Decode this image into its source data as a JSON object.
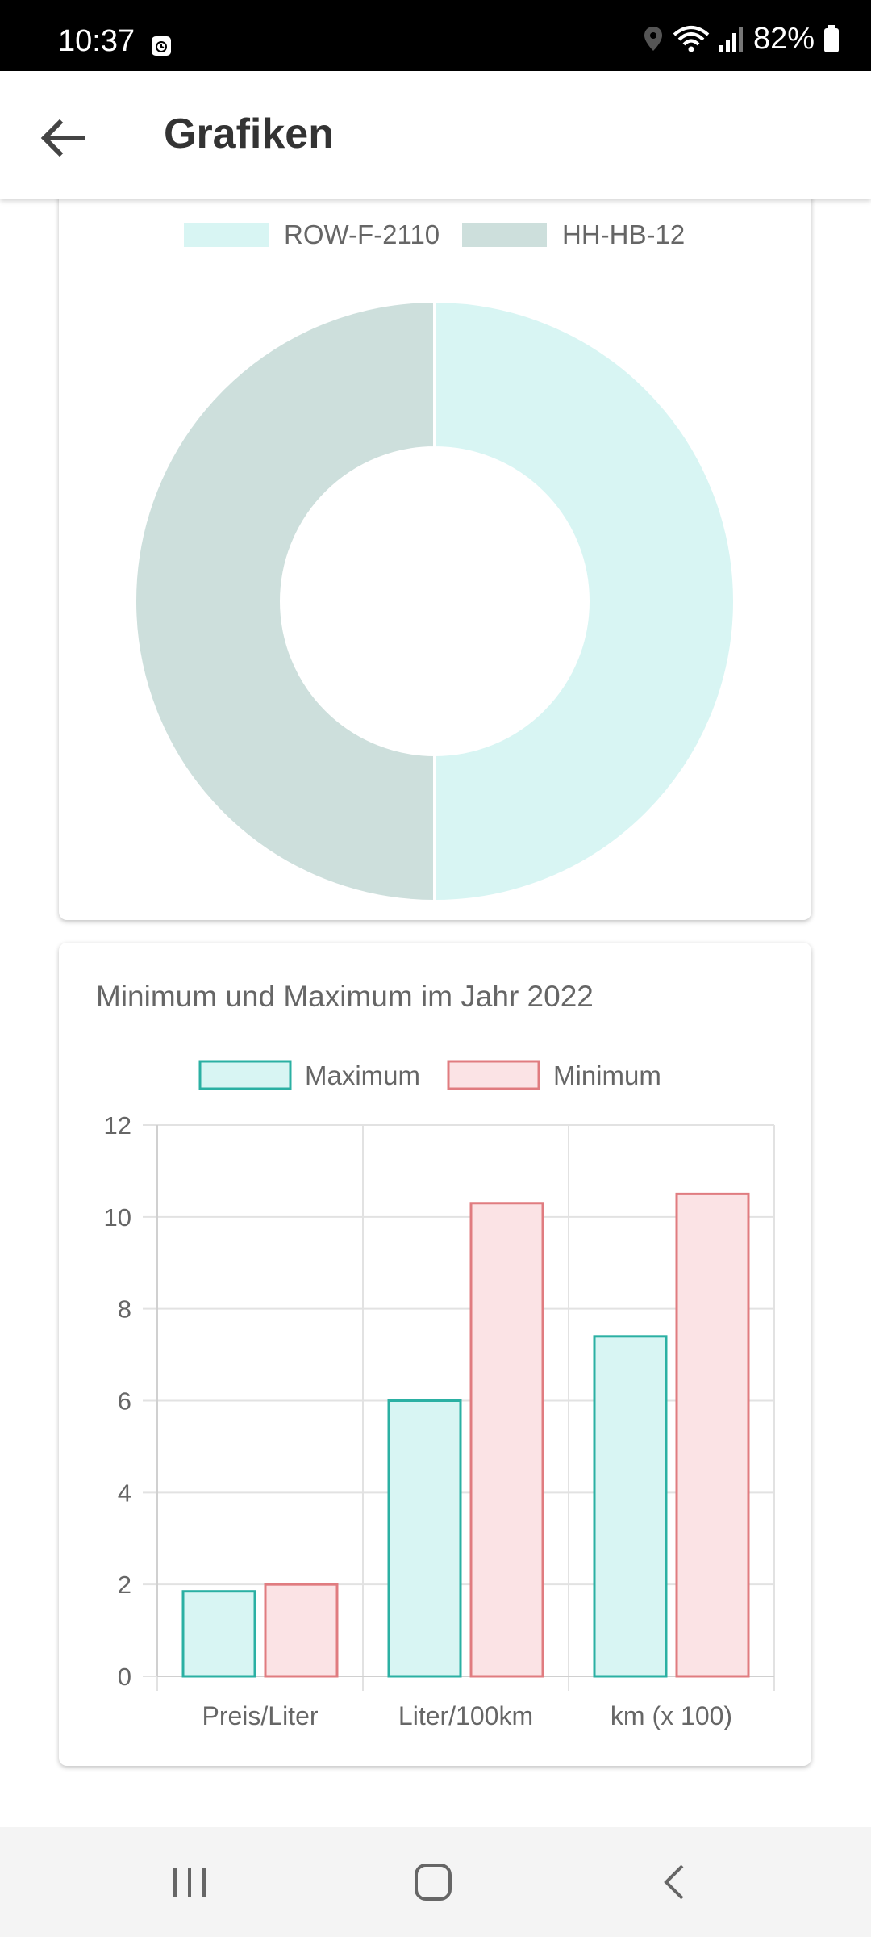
{
  "status_bar": {
    "time": "10:37",
    "battery": "82%",
    "icons": [
      "alarm-icon",
      "location-icon",
      "wifi-icon",
      "signal-icon",
      "battery-icon"
    ]
  },
  "app_bar": {
    "title": "Grafiken",
    "back_icon": "arrow-left-icon"
  },
  "colors": {
    "teal_fill": "#d8f5f3",
    "teal_stroke": "#2bb0a3",
    "gray_teal_fill": "#cddfdc",
    "pink_fill": "#fbe3e5",
    "red_stroke": "#e07c80"
  },
  "chart_data": [
    {
      "type": "pie",
      "donut": true,
      "legend_position": "top",
      "labels": [
        "ROW-F-2110",
        "HH-HB-12"
      ],
      "values": [
        50,
        50
      ],
      "colors": [
        "#d8f5f3",
        "#cddfdc"
      ]
    },
    {
      "type": "bar",
      "title": "Minimum und Maximum im Jahr 2022",
      "legend_position": "top",
      "categories": [
        "Preis/Liter",
        "Liter/100km",
        "km (x 100)"
      ],
      "series": [
        {
          "name": "Maximum",
          "values": [
            1.85,
            6.0,
            7.4
          ],
          "fill": "#d8f5f3",
          "stroke": "#2bb0a3"
        },
        {
          "name": "Minimum",
          "values": [
            2.0,
            10.3,
            10.5
          ],
          "fill": "#fbe3e5",
          "stroke": "#e07c80"
        }
      ],
      "ylim": [
        0,
        12
      ],
      "yticks": [
        0,
        2,
        4,
        6,
        8,
        10,
        12
      ],
      "grid": true
    }
  ],
  "nav_bar": {
    "buttons": [
      "recent-apps-icon",
      "home-icon",
      "back-icon"
    ]
  }
}
